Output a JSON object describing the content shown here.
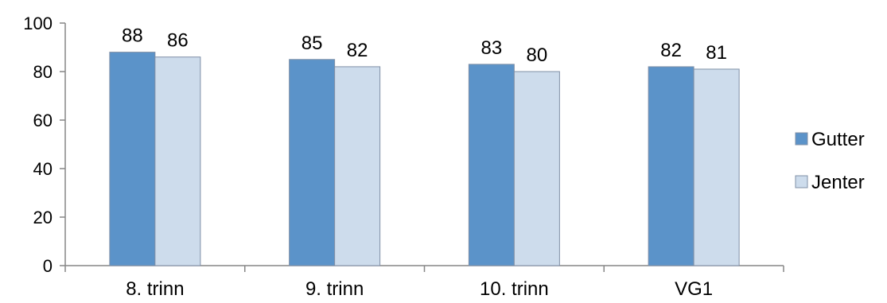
{
  "chart_data": {
    "type": "bar",
    "title": "",
    "xlabel": "",
    "ylabel": "",
    "categories": [
      "8. trinn",
      "9. trinn",
      "10. trinn",
      "VG1"
    ],
    "series": [
      {
        "name": "Gutter",
        "values": [
          88,
          85,
          83,
          82
        ],
        "labels": [
          "88",
          "85",
          "83",
          "82"
        ],
        "color": "#5b93c9"
      },
      {
        "name": "Jenter",
        "values": [
          86,
          82,
          80,
          81
        ],
        "labels": [
          "86",
          "82",
          "80",
          "81"
        ],
        "color": "#cddcec"
      }
    ],
    "ylim": [
      0,
      100
    ],
    "yticks": [
      0,
      20,
      40,
      60,
      80,
      100
    ],
    "grid": false,
    "legend_position": "right"
  }
}
